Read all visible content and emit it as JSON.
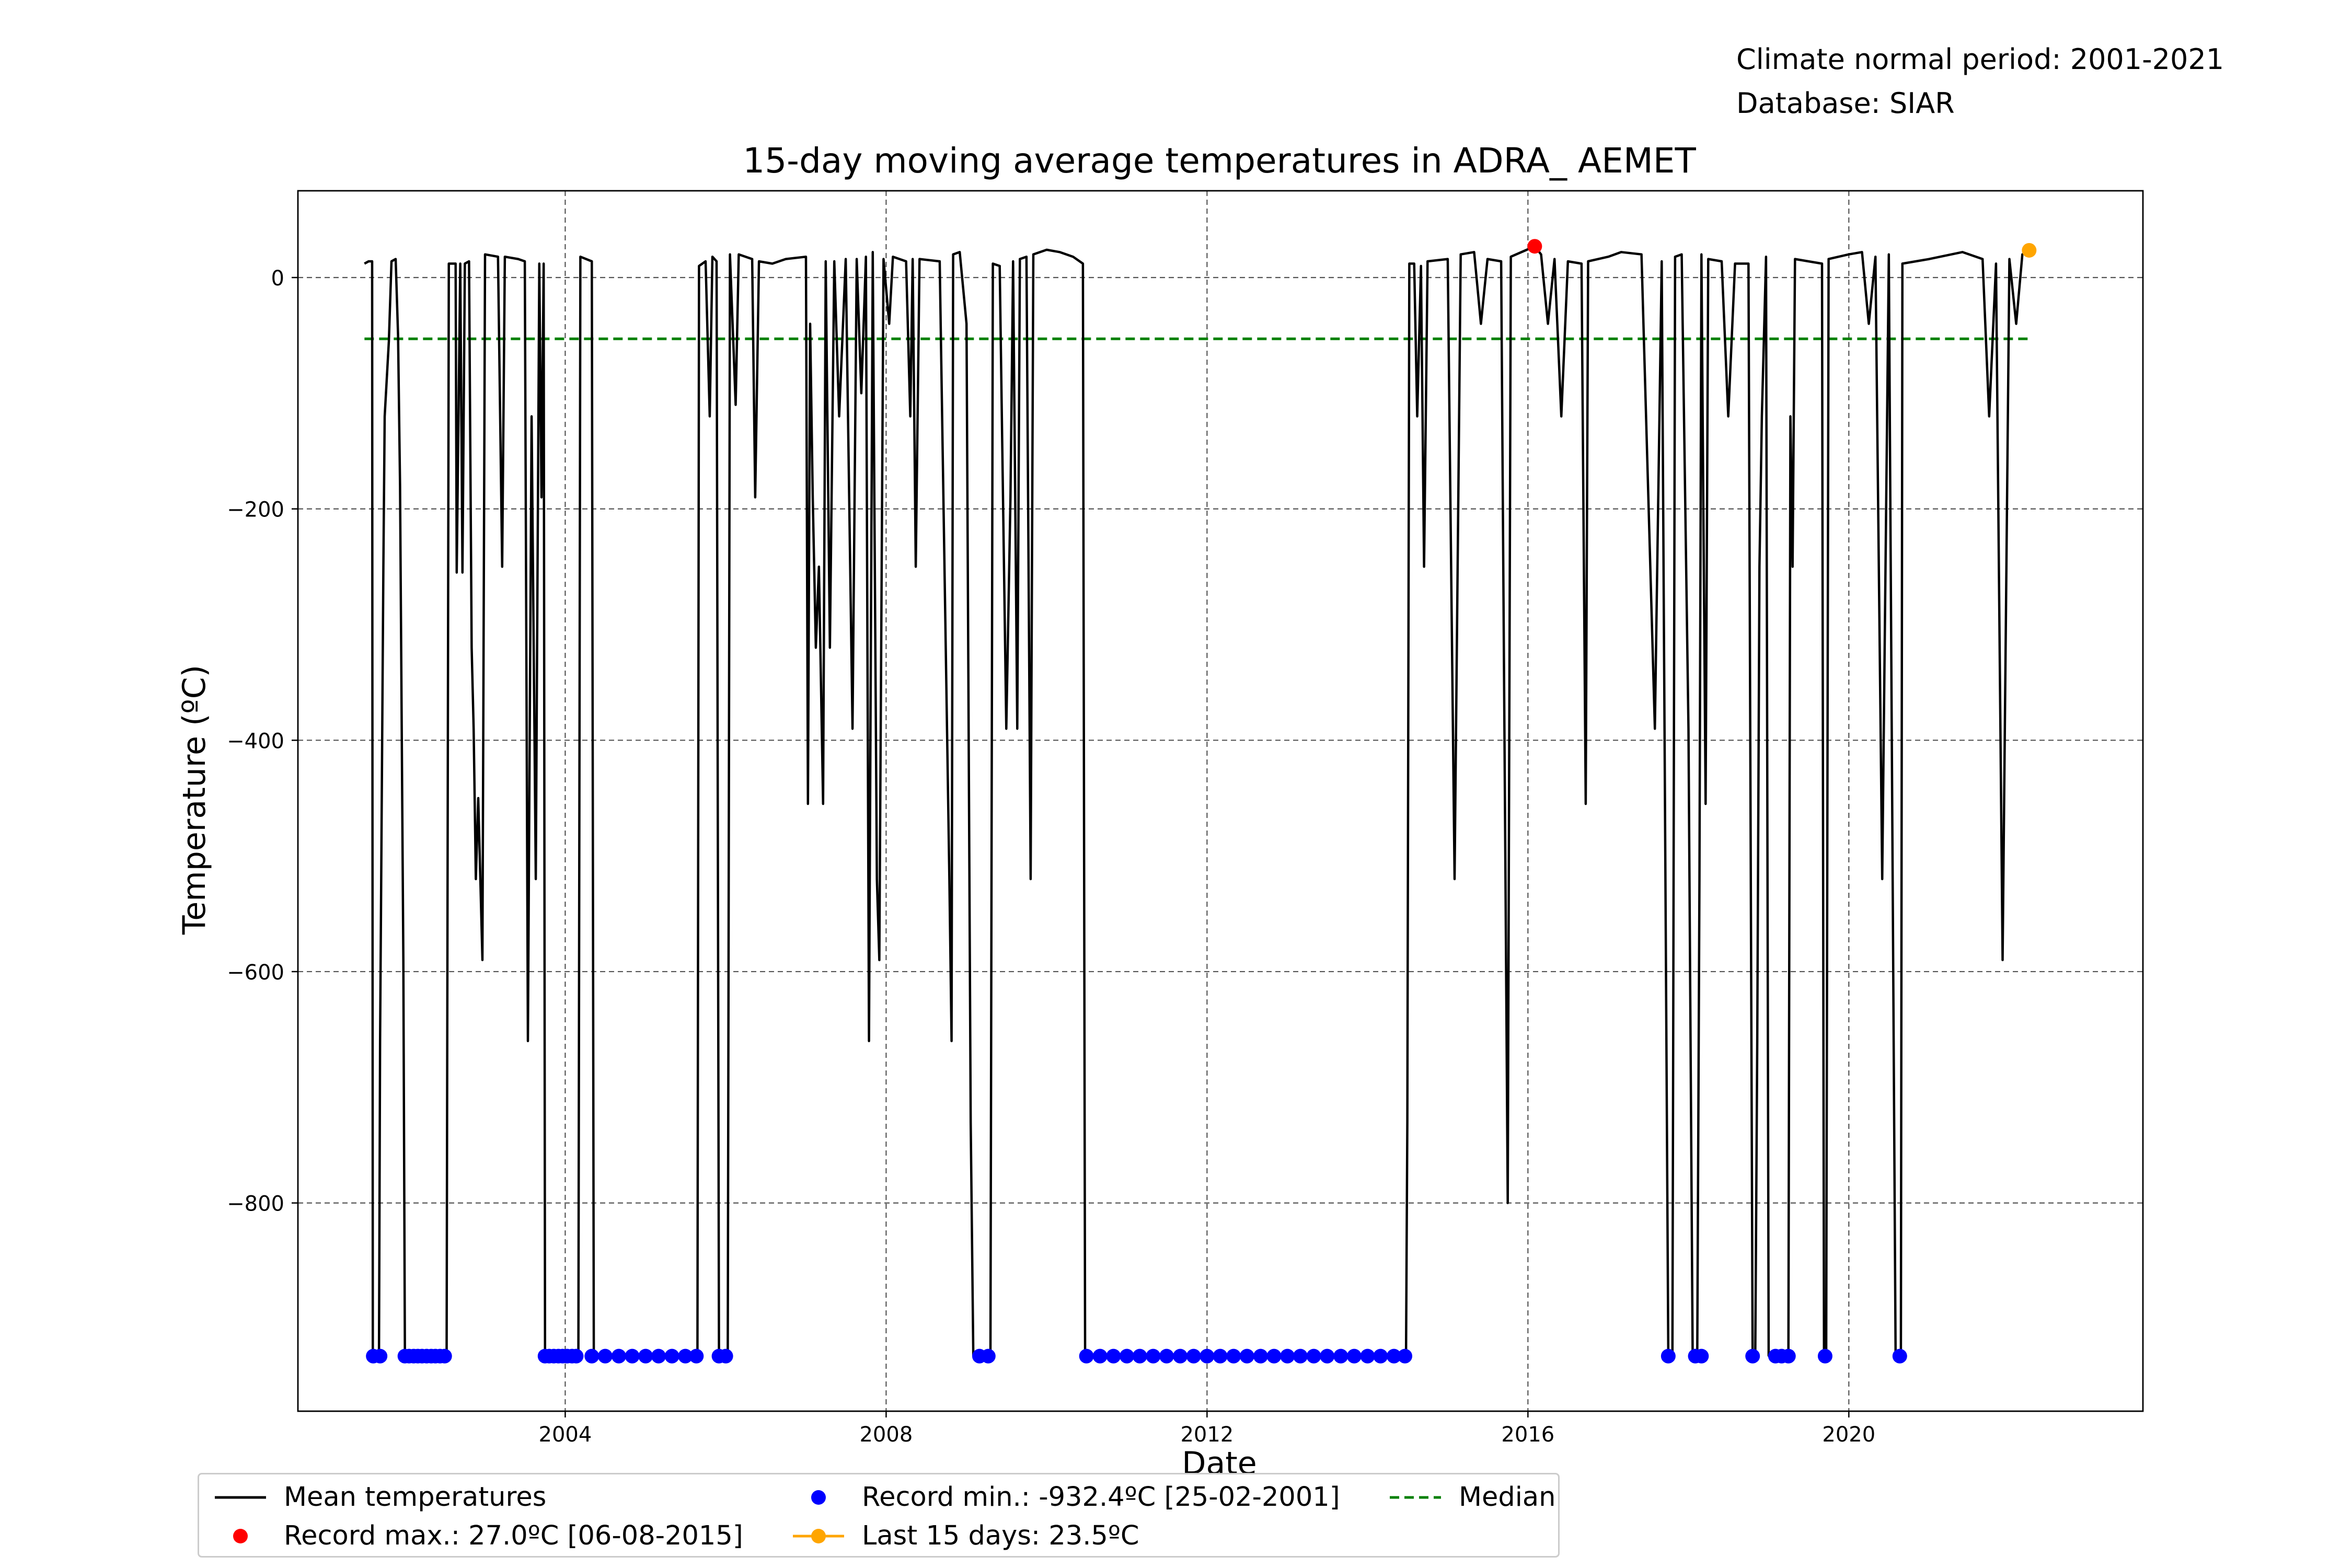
{
  "header": {
    "climate_period": "Climate normal period: 2001-2021",
    "database": "Database: SIAR"
  },
  "chart_data": {
    "type": "line",
    "title": "15-day moving average temperatures in ADRA_ AEMET",
    "xlabel": "Date",
    "ylabel": "Temperature (ºC)",
    "xlim": [
      "2000-09-01",
      "2023-09-01"
    ],
    "ylim": [
      -980,
      75
    ],
    "x_ticks": [
      "2004",
      "2008",
      "2012",
      "2016",
      "2020"
    ],
    "y_ticks": [
      0,
      -200,
      -400,
      -600,
      -800
    ],
    "y_tick_labels": [
      "0",
      "−200",
      "−400",
      "−600",
      "−800"
    ],
    "grid": true,
    "legend_placement": "below",
    "colors": {
      "mean": "#000000",
      "record_max": "#ff0000",
      "record_min": "#0000ff",
      "last_15_days": "#ffa500",
      "median": "#008000"
    },
    "legend": {
      "mean": "Mean temperatures",
      "record_max": "Record max.: 27.0ºC [06-08-2015]",
      "record_min": "Record min.: -932.4ºC [25-02-2001]",
      "last_15_days": "Last 15 days: 23.5ºC",
      "median": "Median"
    },
    "median_value": -53,
    "median_range": [
      "2001-07-01",
      "2022-04-01"
    ],
    "record_max_point": {
      "x": "2016-02-01",
      "y": 27.0
    },
    "last_15_days_point": {
      "x": "2022-04-01",
      "y": 23.5
    },
    "record_min_y": -932.4,
    "record_min_dates": [
      "2001-08-10",
      "2001-09-10",
      "2002-01-01",
      "2002-01-20",
      "2002-02-10",
      "2002-03-01",
      "2002-03-20",
      "2002-04-10",
      "2002-05-01",
      "2002-05-20",
      "2002-06-10",
      "2002-07-01",
      "2003-10-01",
      "2003-10-20",
      "2003-11-10",
      "2003-12-01",
      "2003-12-20",
      "2004-01-10",
      "2004-02-01",
      "2004-02-20",
      "2004-05-01",
      "2004-07-01",
      "2004-09-01",
      "2004-11-01",
      "2005-01-01",
      "2005-03-01",
      "2005-05-01",
      "2005-07-01",
      "2005-08-20",
      "2005-12-01",
      "2006-01-01",
      "2009-03-01",
      "2009-04-10",
      "2010-07-01",
      "2010-09-01",
      "2010-11-01",
      "2011-01-01",
      "2011-03-01",
      "2011-05-01",
      "2011-07-01",
      "2011-09-01",
      "2011-11-01",
      "2012-01-01",
      "2012-03-01",
      "2012-05-01",
      "2012-07-01",
      "2012-09-01",
      "2012-11-01",
      "2013-01-01",
      "2013-03-01",
      "2013-05-01",
      "2013-07-01",
      "2013-09-01",
      "2013-11-01",
      "2014-01-01",
      "2014-03-01",
      "2014-05-01",
      "2014-06-20",
      "2017-10-01",
      "2018-02-01",
      "2018-03-01",
      "2018-10-20",
      "2019-02-01",
      "2019-03-01",
      "2019-04-01",
      "2019-09-15",
      "2020-08-20"
    ],
    "series": [
      {
        "name": "Mean temperatures",
        "points": [
          [
            "2001-07-01",
            12
          ],
          [
            "2001-07-20",
            14
          ],
          [
            "2001-08-05",
            14
          ],
          [
            "2001-08-08",
            -932
          ],
          [
            "2001-09-05",
            -932
          ],
          [
            "2001-09-10",
            -660
          ],
          [
            "2001-09-25",
            -250
          ],
          [
            "2001-10-01",
            -120
          ],
          [
            "2001-10-20",
            -55
          ],
          [
            "2001-11-01",
            14
          ],
          [
            "2001-11-20",
            16
          ],
          [
            "2001-12-01",
            -50
          ],
          [
            "2001-12-10",
            -180
          ],
          [
            "2001-12-20",
            -455
          ],
          [
            "2001-12-25",
            -590
          ],
          [
            "2002-01-01",
            -932
          ],
          [
            "2002-07-10",
            -932
          ],
          [
            "2002-07-20",
            12
          ],
          [
            "2002-08-20",
            12
          ],
          [
            "2002-08-25",
            -255
          ],
          [
            "2002-09-10",
            12
          ],
          [
            "2002-09-20",
            -255
          ],
          [
            "2002-10-01",
            12
          ],
          [
            "2002-10-20",
            14
          ],
          [
            "2002-11-01",
            -320
          ],
          [
            "2002-11-10",
            -390
          ],
          [
            "2002-11-20",
            -520
          ],
          [
            "2002-12-01",
            -450
          ],
          [
            "2002-12-20",
            -590
          ],
          [
            "2003-01-01",
            20
          ],
          [
            "2003-03-01",
            18
          ],
          [
            "2003-03-20",
            -250
          ],
          [
            "2003-04-01",
            18
          ],
          [
            "2003-06-01",
            16
          ],
          [
            "2003-07-01",
            14
          ],
          [
            "2003-07-15",
            -660
          ],
          [
            "2003-08-01",
            -120
          ],
          [
            "2003-08-20",
            -520
          ],
          [
            "2003-09-05",
            12
          ],
          [
            "2003-09-15",
            -190
          ],
          [
            "2003-09-25",
            12
          ],
          [
            "2003-10-01",
            -932
          ],
          [
            "2004-03-01",
            -932
          ],
          [
            "2004-03-10",
            18
          ],
          [
            "2004-05-01",
            14
          ],
          [
            "2004-05-10",
            -932
          ],
          [
            "2005-08-25",
            -932
          ],
          [
            "2005-09-01",
            10
          ],
          [
            "2005-10-01",
            14
          ],
          [
            "2005-10-20",
            -120
          ],
          [
            "2005-11-01",
            18
          ],
          [
            "2005-11-20",
            14
          ],
          [
            "2005-12-01",
            -932
          ],
          [
            "2006-01-10",
            -932
          ],
          [
            "2006-01-20",
            20
          ],
          [
            "2006-02-15",
            -110
          ],
          [
            "2006-03-01",
            20
          ],
          [
            "2006-04-01",
            18
          ],
          [
            "2006-05-01",
            16
          ],
          [
            "2006-05-15",
            -190
          ],
          [
            "2006-06-01",
            14
          ],
          [
            "2006-08-01",
            12
          ],
          [
            "2006-10-01",
            16
          ],
          [
            "2007-01-01",
            18
          ],
          [
            "2007-01-10",
            -455
          ],
          [
            "2007-01-20",
            -40
          ],
          [
            "2007-02-01",
            -190
          ],
          [
            "2007-02-15",
            -320
          ],
          [
            "2007-03-01",
            -250
          ],
          [
            "2007-03-20",
            -455
          ],
          [
            "2007-04-01",
            14
          ],
          [
            "2007-04-20",
            -320
          ],
          [
            "2007-05-10",
            14
          ],
          [
            "2007-06-01",
            -120
          ],
          [
            "2007-07-01",
            16
          ],
          [
            "2007-08-01",
            -390
          ],
          [
            "2007-08-20",
            16
          ],
          [
            "2007-09-10",
            -100
          ],
          [
            "2007-10-01",
            18
          ],
          [
            "2007-10-15",
            -660
          ],
          [
            "2007-11-01",
            22
          ],
          [
            "2007-11-20",
            -520
          ],
          [
            "2007-12-01",
            -590
          ],
          [
            "2007-12-20",
            16
          ],
          [
            "2008-01-15",
            -40
          ],
          [
            "2008-02-01",
            18
          ],
          [
            "2008-04-01",
            14
          ],
          [
            "2008-04-20",
            -120
          ],
          [
            "2008-05-01",
            16
          ],
          [
            "2008-05-15",
            -250
          ],
          [
            "2008-06-01",
            16
          ],
          [
            "2008-09-01",
            14
          ],
          [
            "2008-10-15",
            -520
          ],
          [
            "2008-10-25",
            -660
          ],
          [
            "2008-11-01",
            20
          ],
          [
            "2008-12-01",
            22
          ],
          [
            "2009-01-01",
            -40
          ],
          [
            "2009-01-20",
            -730
          ],
          [
            "2009-02-01",
            -932
          ],
          [
            "2009-04-20",
            -932
          ],
          [
            "2009-05-01",
            12
          ],
          [
            "2009-06-01",
            10
          ],
          [
            "2009-07-01",
            -390
          ],
          [
            "2009-07-20",
            -190
          ],
          [
            "2009-08-01",
            14
          ],
          [
            "2009-08-20",
            -390
          ],
          [
            "2009-09-01",
            16
          ],
          [
            "2009-10-01",
            18
          ],
          [
            "2009-10-20",
            -520
          ],
          [
            "2009-11-01",
            20
          ],
          [
            "2010-01-01",
            24
          ],
          [
            "2010-03-01",
            22
          ],
          [
            "2010-05-01",
            18
          ],
          [
            "2010-06-15",
            12
          ],
          [
            "2010-06-25",
            -932
          ],
          [
            "2014-06-25",
            -932
          ],
          [
            "2014-07-01",
            -730
          ],
          [
            "2014-07-10",
            12
          ],
          [
            "2014-08-01",
            12
          ],
          [
            "2014-08-15",
            -120
          ],
          [
            "2014-09-01",
            10
          ],
          [
            "2014-09-15",
            -250
          ],
          [
            "2014-10-01",
            14
          ],
          [
            "2015-01-01",
            16
          ],
          [
            "2015-02-01",
            -520
          ],
          [
            "2015-03-01",
            20
          ],
          [
            "2015-05-01",
            22
          ],
          [
            "2015-06-01",
            -40
          ],
          [
            "2015-07-01",
            16
          ],
          [
            "2015-09-01",
            14
          ],
          [
            "2015-10-01",
            -800
          ],
          [
            "2015-10-15",
            18
          ],
          [
            "2016-02-01",
            27
          ],
          [
            "2016-03-01",
            20
          ],
          [
            "2016-04-01",
            -40
          ],
          [
            "2016-05-01",
            16
          ],
          [
            "2016-06-01",
            -120
          ],
          [
            "2016-07-01",
            14
          ],
          [
            "2016-09-01",
            12
          ],
          [
            "2016-09-20",
            -455
          ],
          [
            "2016-10-01",
            14
          ],
          [
            "2017-01-01",
            18
          ],
          [
            "2017-03-01",
            22
          ],
          [
            "2017-06-01",
            20
          ],
          [
            "2017-08-01",
            -390
          ],
          [
            "2017-09-01",
            14
          ],
          [
            "2017-10-01",
            -932
          ],
          [
            "2017-10-20",
            -932
          ],
          [
            "2017-11-01",
            18
          ],
          [
            "2017-12-01",
            20
          ],
          [
            "2018-01-01",
            -390
          ],
          [
            "2018-01-20",
            -932
          ],
          [
            "2018-02-10",
            -932
          ],
          [
            "2018-02-20",
            -520
          ],
          [
            "2018-03-01",
            20
          ],
          [
            "2018-03-20",
            -455
          ],
          [
            "2018-04-01",
            16
          ],
          [
            "2018-06-01",
            14
          ],
          [
            "2018-07-01",
            -120
          ],
          [
            "2018-08-01",
            12
          ],
          [
            "2018-10-01",
            12
          ],
          [
            "2018-10-20",
            -932
          ],
          [
            "2018-11-01",
            -932
          ],
          [
            "2018-11-10",
            -660
          ],
          [
            "2018-11-20",
            -250
          ],
          [
            "2018-12-01",
            -120
          ],
          [
            "2018-12-20",
            18
          ],
          [
            "2019-01-01",
            -932
          ],
          [
            "2019-04-01",
            -932
          ],
          [
            "2019-04-10",
            -120
          ],
          [
            "2019-04-20",
            -250
          ],
          [
            "2019-05-01",
            16
          ],
          [
            "2019-07-01",
            14
          ],
          [
            "2019-09-01",
            12
          ],
          [
            "2019-09-10",
            -932
          ],
          [
            "2019-09-20",
            -932
          ],
          [
            "2019-10-01",
            16
          ],
          [
            "2020-01-01",
            20
          ],
          [
            "2020-03-01",
            22
          ],
          [
            "2020-04-01",
            -40
          ],
          [
            "2020-05-01",
            18
          ],
          [
            "2020-06-01",
            -520
          ],
          [
            "2020-07-01",
            20
          ],
          [
            "2020-08-01",
            -932
          ],
          [
            "2020-08-25",
            -932
          ],
          [
            "2020-09-01",
            12
          ],
          [
            "2021-01-01",
            16
          ],
          [
            "2021-06-01",
            22
          ],
          [
            "2021-09-01",
            16
          ],
          [
            "2021-10-01",
            -120
          ],
          [
            "2021-11-01",
            12
          ],
          [
            "2021-12-01",
            -590
          ],
          [
            "2022-01-01",
            16
          ],
          [
            "2022-02-01",
            -40
          ],
          [
            "2022-03-01",
            20
          ],
          [
            "2022-04-01",
            24
          ]
        ]
      }
    ]
  }
}
